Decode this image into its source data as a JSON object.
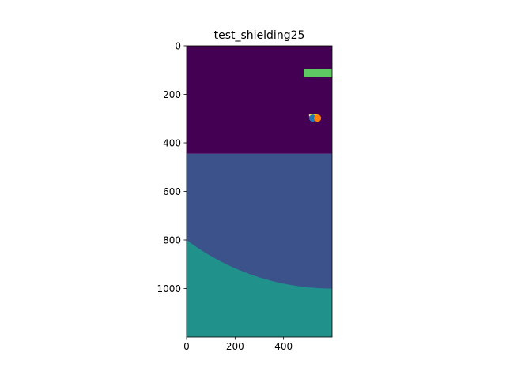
{
  "chart_data": {
    "type": "heatmap",
    "title": "test_shielding25",
    "xlabel": "",
    "ylabel": "",
    "xlim": [
      0,
      600
    ],
    "ylim": [
      1200,
      0
    ],
    "y_axis_inverted": true,
    "x_ticks": [
      0,
      200,
      400
    ],
    "y_ticks": [
      0,
      200,
      400,
      600,
      800,
      1000
    ],
    "grid": false,
    "legend": "none",
    "colors": {
      "region_0": "#440154",
      "region_1": "#3b528b",
      "region_2": "#21918c",
      "region_3": "#5ec962",
      "marker_blue": "#1f77b4",
      "marker_orange": "#ff7f0e",
      "bar_yellow": "#fde725"
    },
    "regions": [
      {
        "name": "top-region",
        "value": 0,
        "y_range": [
          0,
          445
        ],
        "color": "#440154"
      },
      {
        "name": "middle-region",
        "value": 1,
        "y_range": [
          445,
          1200
        ],
        "color": "#3b528b"
      },
      {
        "name": "bottom-curved-region",
        "value": 2,
        "boundary": {
          "type": "circle-arc",
          "center": [
            600,
            0
          ],
          "passes_through": [
            [
              0,
              800
            ],
            [
              600,
              1000
            ]
          ]
        },
        "color": "#21918c"
      },
      {
        "name": "green-rectangle",
        "value": 3,
        "x_range": [
          483,
          600
        ],
        "y_range": [
          97,
          130
        ],
        "color": "#5ec962"
      }
    ],
    "markers": [
      {
        "name": "yellow-bar",
        "x_range": [
          505,
          540
        ],
        "y_range": [
          283,
          291
        ],
        "color": "#fde725"
      },
      {
        "name": "blue-point",
        "x": 520,
        "y": 298,
        "color": "#1f77b4"
      },
      {
        "name": "orange-point",
        "x": 540,
        "y": 298,
        "color": "#ff7f0e"
      }
    ]
  }
}
